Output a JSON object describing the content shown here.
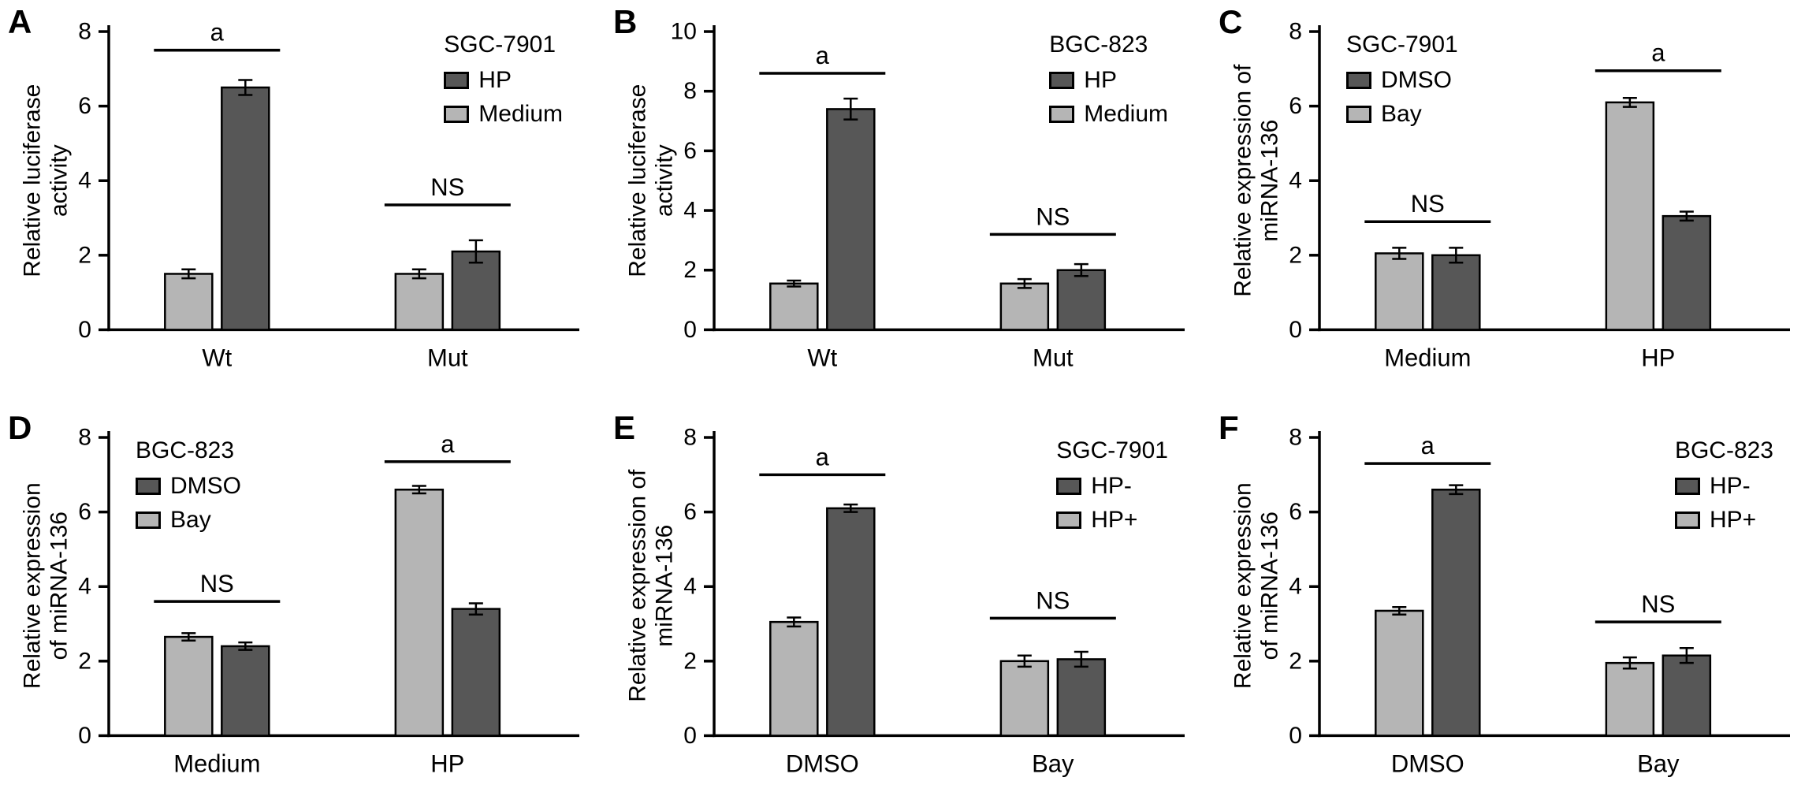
{
  "colors": {
    "background": "#ffffff",
    "dark": "#575757",
    "light": "#b5b5b5",
    "axis": "#000000",
    "text": "#000000"
  },
  "chart_data": [
    {
      "type": "bar",
      "panel_label": "A",
      "cell_line": "SGC-7901",
      "ylabel_lines": [
        "Relative luciferase",
        "activity"
      ],
      "ylim": [
        0,
        8
      ],
      "ytick_step": 2,
      "categories": [
        "Wt",
        "Mut"
      ],
      "series": [
        {
          "name": "Medium",
          "color": "light",
          "values": [
            1.5,
            1.5
          ],
          "errors": [
            0.12,
            0.12
          ]
        },
        {
          "name": "HP",
          "color": "dark",
          "values": [
            6.5,
            2.1
          ],
          "errors": [
            0.2,
            0.3
          ]
        }
      ],
      "legend_labels": [
        "HP",
        "Medium"
      ],
      "legend_pos": "right",
      "significance": [
        {
          "group_index": 0,
          "label": "a",
          "line_y": 7.5
        },
        {
          "group_index": 1,
          "label": "NS",
          "line_y": 3.35
        }
      ]
    },
    {
      "type": "bar",
      "panel_label": "B",
      "cell_line": "BGC-823",
      "ylabel_lines": [
        "Relative luciferase",
        "activity"
      ],
      "ylim": [
        0,
        10
      ],
      "ytick_step": 2,
      "categories": [
        "Wt",
        "Mut"
      ],
      "series": [
        {
          "name": "Medium",
          "color": "light",
          "values": [
            1.55,
            1.55
          ],
          "errors": [
            0.1,
            0.15
          ]
        },
        {
          "name": "HP",
          "color": "dark",
          "values": [
            7.4,
            2.0
          ],
          "errors": [
            0.35,
            0.2
          ]
        }
      ],
      "legend_labels": [
        "HP",
        "Medium"
      ],
      "legend_pos": "right",
      "significance": [
        {
          "group_index": 0,
          "label": "a",
          "line_y": 8.6
        },
        {
          "group_index": 1,
          "label": "NS",
          "line_y": 3.2
        }
      ]
    },
    {
      "type": "bar",
      "panel_label": "C",
      "cell_line": "SGC-7901",
      "ylabel_lines": [
        "Relative expression of",
        "miRNA-136"
      ],
      "ylim": [
        0,
        8
      ],
      "ytick_step": 2,
      "categories": [
        "Medium",
        "HP"
      ],
      "series": [
        {
          "name": "Bay",
          "color": "light",
          "values": [
            2.05,
            6.1
          ],
          "errors": [
            0.15,
            0.12
          ]
        },
        {
          "name": "DMSO",
          "color": "dark",
          "values": [
            2.0,
            3.05
          ],
          "errors": [
            0.2,
            0.12
          ]
        }
      ],
      "legend_labels": [
        "DMSO",
        "Bay"
      ],
      "legend_pos": "left",
      "significance": [
        {
          "group_index": 0,
          "label": "NS",
          "line_y": 2.9
        },
        {
          "group_index": 1,
          "label": "a",
          "line_y": 6.95
        }
      ]
    },
    {
      "type": "bar",
      "panel_label": "D",
      "cell_line": "BGC-823",
      "ylabel_lines": [
        "Relative expression",
        "of miRNA-136"
      ],
      "ylim": [
        0,
        8
      ],
      "ytick_step": 2,
      "categories": [
        "Medium",
        "HP"
      ],
      "series": [
        {
          "name": "Bay",
          "color": "light",
          "values": [
            2.65,
            6.6
          ],
          "errors": [
            0.1,
            0.1
          ]
        },
        {
          "name": "DMSO",
          "color": "dark",
          "values": [
            2.4,
            3.4
          ],
          "errors": [
            0.1,
            0.15
          ]
        }
      ],
      "legend_labels": [
        "DMSO",
        "Bay"
      ],
      "legend_pos": "left",
      "significance": [
        {
          "group_index": 0,
          "label": "NS",
          "line_y": 3.6
        },
        {
          "group_index": 1,
          "label": "a",
          "line_y": 7.35
        }
      ]
    },
    {
      "type": "bar",
      "panel_label": "E",
      "cell_line": "SGC-7901",
      "ylabel_lines": [
        "Relative expression of",
        "miRNA-136"
      ],
      "ylim": [
        0,
        8
      ],
      "ytick_step": 2,
      "categories": [
        "DMSO",
        "Bay"
      ],
      "series": [
        {
          "name": "HP+",
          "color": "light",
          "values": [
            3.05,
            2.0
          ],
          "errors": [
            0.12,
            0.15
          ]
        },
        {
          "name": "HP-",
          "color": "dark",
          "values": [
            6.1,
            2.05
          ],
          "errors": [
            0.1,
            0.2
          ]
        }
      ],
      "legend_labels": [
        "HP-",
        "HP+"
      ],
      "legend_pos": "right",
      "significance": [
        {
          "group_index": 0,
          "label": "a",
          "line_y": 7.0
        },
        {
          "group_index": 1,
          "label": "NS",
          "line_y": 3.15
        }
      ]
    },
    {
      "type": "bar",
      "panel_label": "F",
      "cell_line": "BGC-823",
      "ylabel_lines": [
        "Relative expression",
        "of miRNA-136"
      ],
      "ylim": [
        0,
        8
      ],
      "ytick_step": 2,
      "categories": [
        "DMSO",
        "Bay"
      ],
      "series": [
        {
          "name": "HP+",
          "color": "light",
          "values": [
            3.35,
            1.95
          ],
          "errors": [
            0.1,
            0.15
          ]
        },
        {
          "name": "HP-",
          "color": "dark",
          "values": [
            6.6,
            2.15
          ],
          "errors": [
            0.12,
            0.2
          ]
        }
      ],
      "legend_labels": [
        "HP-",
        "HP+"
      ],
      "legend_pos": "right",
      "significance": [
        {
          "group_index": 0,
          "label": "a",
          "line_y": 7.3
        },
        {
          "group_index": 1,
          "label": "NS",
          "line_y": 3.05
        }
      ]
    }
  ]
}
